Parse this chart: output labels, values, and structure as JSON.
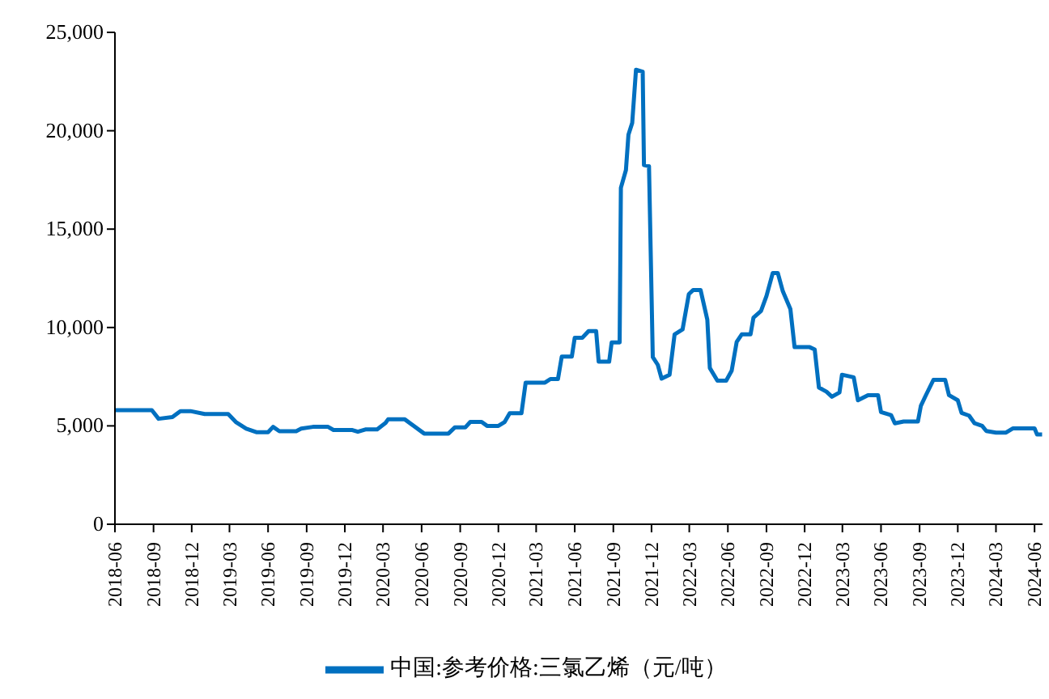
{
  "chart_data": {
    "type": "line",
    "x": [
      "2018-06-01",
      "2018-08-28",
      "2018-09-13",
      "2018-10-16",
      "2018-11-04",
      "2018-11-28",
      "2019-01-01",
      "2019-02-26",
      "2019-03-16",
      "2019-04-10",
      "2019-05-04",
      "2019-06-01",
      "2019-06-13",
      "2019-06-28",
      "2019-08-07",
      "2019-08-19",
      "2019-09-16",
      "2019-10-22",
      "2019-11-04",
      "2019-12-19",
      "2020-01-01",
      "2020-01-19",
      "2020-02-16",
      "2020-03-07",
      "2020-03-13",
      "2020-04-22",
      "2020-06-07",
      "2020-08-04",
      "2020-08-19",
      "2020-09-13",
      "2020-09-25",
      "2020-10-22",
      "2020-11-04",
      "2020-12-01",
      "2020-12-16",
      "2020-12-28",
      "2021-01-25",
      "2021-02-04",
      "2021-03-22",
      "2021-04-04",
      "2021-04-22",
      "2021-05-01",
      "2021-05-25",
      "2021-06-01",
      "2021-06-19",
      "2021-07-04",
      "2021-07-22",
      "2021-07-28",
      "2021-08-22",
      "2021-08-28",
      "2021-09-16",
      "2021-09-19",
      "2021-10-01",
      "2021-10-07",
      "2021-10-16",
      "2021-10-25",
      "2021-11-10",
      "2021-11-13",
      "2021-11-25",
      "2021-12-04",
      "2021-12-16",
      "2021-12-25",
      "2022-01-13",
      "2022-01-25",
      "2022-02-13",
      "2022-02-28",
      "2022-03-10",
      "2022-03-28",
      "2022-04-13",
      "2022-04-19",
      "2022-05-07",
      "2022-05-28",
      "2022-06-10",
      "2022-06-22",
      "2022-07-04",
      "2022-07-25",
      "2022-08-01",
      "2022-08-19",
      "2022-09-01",
      "2022-09-16",
      "2022-09-28",
      "2022-10-10",
      "2022-10-28",
      "2022-11-07",
      "2022-12-13",
      "2022-12-25",
      "2023-01-04",
      "2023-01-22",
      "2023-02-04",
      "2023-02-22",
      "2023-02-28",
      "2023-03-28",
      "2023-04-07",
      "2023-05-01",
      "2023-05-25",
      "2023-06-01",
      "2023-06-25",
      "2023-07-04",
      "2023-07-25",
      "2023-08-28",
      "2023-09-04",
      "2023-09-16",
      "2023-10-04",
      "2023-11-01",
      "2023-11-10",
      "2023-12-01",
      "2023-12-10",
      "2023-12-28",
      "2024-01-10",
      "2024-01-28",
      "2024-02-07",
      "2024-03-01",
      "2024-03-25",
      "2024-04-10",
      "2024-06-01",
      "2024-06-07",
      "2024-06-19"
    ],
    "series": [
      {
        "name": "中国:参考价格:三氯乙烯（元/吨）",
        "color": "#0070c0",
        "values": [
          5800,
          5800,
          5360,
          5450,
          5750,
          5750,
          5600,
          5600,
          5200,
          4860,
          4680,
          4680,
          4950,
          4730,
          4730,
          4860,
          4950,
          4950,
          4790,
          4790,
          4700,
          4820,
          4820,
          5150,
          5330,
          5330,
          4610,
          4610,
          4920,
          4920,
          5200,
          5200,
          5000,
          5000,
          5200,
          5640,
          5640,
          7200,
          7200,
          7380,
          7380,
          8520,
          8520,
          9480,
          9480,
          9820,
          9820,
          8260,
          8260,
          9240,
          9240,
          17100,
          18000,
          19800,
          20400,
          23100,
          23000,
          18250,
          18200,
          8500,
          8100,
          7400,
          7600,
          9650,
          9900,
          11700,
          11900,
          11900,
          10400,
          7940,
          7300,
          7300,
          7800,
          9270,
          9650,
          9650,
          10500,
          10840,
          11600,
          12770,
          12770,
          11840,
          10940,
          9000,
          9000,
          8880,
          6950,
          6740,
          6480,
          6700,
          7600,
          7470,
          6300,
          6560,
          6560,
          5700,
          5550,
          5130,
          5220,
          5220,
          6020,
          6560,
          7340,
          7340,
          6560,
          6300,
          5660,
          5520,
          5130,
          5000,
          4740,
          4660,
          4660,
          4870,
          4870,
          4560,
          4560
        ]
      }
    ],
    "xlim": [
      "2018-06-01",
      "2024-06-20"
    ],
    "xticks": [
      "2018-06",
      "2018-09",
      "2018-12",
      "2019-03",
      "2019-06",
      "2019-09",
      "2019-12",
      "2020-03",
      "2020-06",
      "2020-09",
      "2020-12",
      "2021-03",
      "2021-06",
      "2021-09",
      "2021-12",
      "2022-03",
      "2022-06",
      "2022-09",
      "2022-12",
      "2023-03",
      "2023-06",
      "2023-09",
      "2023-12",
      "2024-03",
      "2024-06"
    ],
    "ylim": [
      0,
      25000
    ],
    "yticks": [
      0,
      {
        "value": 5000,
        "label": "5,000"
      },
      {
        "value": 10000,
        "label": "10,000"
      },
      {
        "value": 15000,
        "label": "15,000"
      },
      {
        "value": 20000,
        "label": "20,000"
      },
      {
        "value": 25000,
        "label": "25,000"
      }
    ],
    "grid": false,
    "legend": "bottom",
    "marker": "none",
    "line_style": "solid"
  }
}
